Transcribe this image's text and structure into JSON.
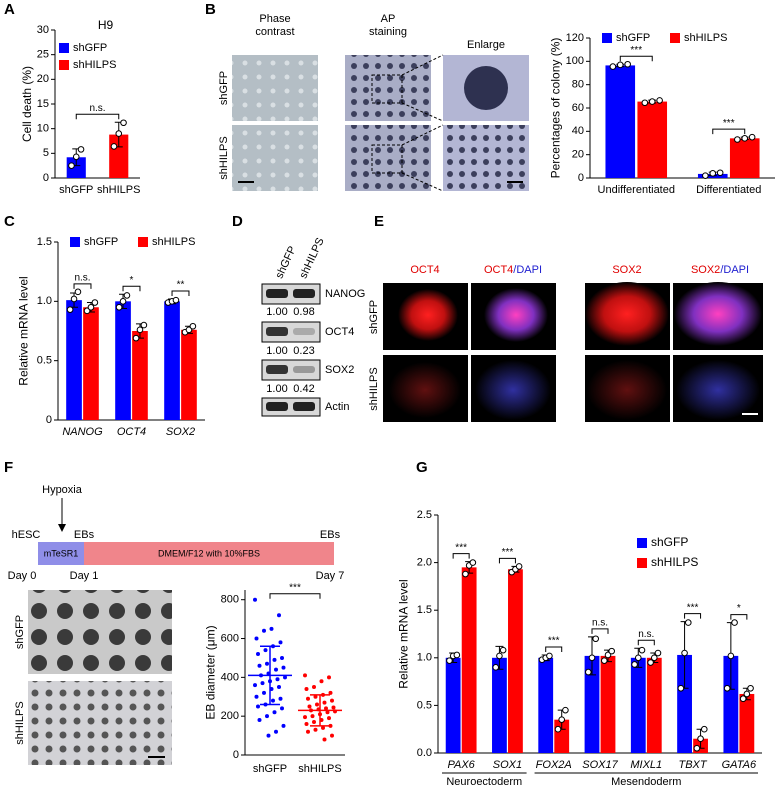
{
  "panel_labels": [
    "A",
    "B",
    "C",
    "D",
    "E",
    "F",
    "G"
  ],
  "panel_b_images": {
    "columns": [
      [
        "Phase",
        "contrast"
      ],
      [
        "AP",
        "staining"
      ],
      [
        "Enlarge"
      ]
    ],
    "rows": [
      "shGFP",
      "shHILPS"
    ]
  },
  "western": {
    "lanes": [
      "shGFP",
      "shHILPS"
    ],
    "proteins": [
      "NANOG",
      "OCT4",
      "SOX2",
      "Actin"
    ],
    "quantification": [
      [
        "1.00",
        "0.98"
      ],
      [
        "1.00",
        "0.23"
      ],
      [
        "1.00",
        "0.42"
      ]
    ]
  },
  "panel_e_images": {
    "columns": [
      {
        "stain": "OCT4"
      },
      {
        "stain": "OCT4",
        "counterstain": "/DAPI"
      },
      {
        "stain": "SOX2"
      },
      {
        "stain": "SOX2",
        "counterstain": "/DAPI"
      }
    ],
    "rows": [
      "shGFP",
      "shHILPS"
    ]
  },
  "timeline": {
    "event": "Hypoxia",
    "stages": [
      "hESC",
      "EBs",
      "EBs"
    ],
    "media": [
      "mTeSR1",
      "DMEM/F12 with 10%FBS"
    ],
    "days": [
      "Day 0",
      "Day 1",
      "Day 7"
    ]
  },
  "panel_f_images": {
    "rows": [
      "shGFP",
      "shHILPS"
    ]
  },
  "chart_data": [
    {
      "type": "bar",
      "title": "H9",
      "y_label": "Cell death (%)",
      "categories": [
        "shGFP",
        "shHILPS"
      ],
      "values": [
        4.2,
        8.8
      ],
      "errors": [
        1.7,
        2.5
      ],
      "points": [
        [
          2.5,
          4.3,
          5.8
        ],
        [
          6.4,
          9.0,
          11.2
        ]
      ],
      "colors": [
        "#0000ff",
        "#ff0000"
      ],
      "legend": "top-left",
      "ylim": [
        0,
        30
      ],
      "yticks": [
        0,
        5,
        10,
        15,
        20,
        25,
        30
      ],
      "significance": "n.s."
    },
    {
      "type": "bar",
      "y_label": "Percentages of colony (%)",
      "categories": [
        "Undifferentiated",
        "Differentiated"
      ],
      "series": [
        {
          "name": "shGFP",
          "color": "#0000ff",
          "values": [
            96.5,
            3.5
          ],
          "errors": [
            1.0,
            1.5
          ],
          "points": [
            [
              95.5,
              97,
              97.5
            ],
            [
              2,
              4,
              4.5
            ]
          ]
        },
        {
          "name": "shHILPS",
          "color": "#ff0000",
          "values": [
            65.5,
            34
          ],
          "errors": [
            1.2,
            1.0
          ],
          "points": [
            [
              64.5,
              65.5,
              66.5
            ],
            [
              33,
              34,
              35
            ]
          ]
        }
      ],
      "ylim": [
        0,
        120
      ],
      "yticks": [
        0,
        20,
        40,
        60,
        80,
        100,
        120
      ],
      "significance": [
        "***",
        "***"
      ],
      "legend": "top"
    },
    {
      "type": "bar",
      "y_label": "Relative mRNA level",
      "categories": [
        "NANOG",
        "OCT4",
        "SOX2"
      ],
      "italic_categories": true,
      "series": [
        {
          "name": "shGFP",
          "color": "#0000ff",
          "values": [
            1.01,
            1.0,
            1.0
          ],
          "errors": [
            0.06,
            0.06,
            0.02
          ],
          "points": [
            [
              0.93,
              1.02,
              1.08
            ],
            [
              0.95,
              1.0,
              1.05
            ],
            [
              0.99,
              1.0,
              1.01
            ]
          ]
        },
        {
          "name": "shHILPS",
          "color": "#ff0000",
          "values": [
            0.95,
            0.75,
            0.76
          ],
          "errors": [
            0.04,
            0.06,
            0.03
          ],
          "points": [
            [
              0.92,
              0.95,
              0.99
            ],
            [
              0.69,
              0.76,
              0.8
            ],
            [
              0.74,
              0.76,
              0.79
            ]
          ]
        }
      ],
      "ylim": [
        0,
        1.5
      ],
      "yticks": [
        0,
        0.5,
        {
          "value": 1,
          "label": "1.0"
        },
        1.5
      ],
      "significance": [
        "n.s.",
        "*",
        "**"
      ],
      "legend": "top"
    },
    {
      "type": "dot",
      "y_label": "EB diameter (μm)",
      "categories": [
        "shGFP",
        "shHILPS"
      ],
      "colors": [
        "#0000ff",
        "#ff0000"
      ],
      "values": [
        [
          800,
          720,
          650,
          640,
          600,
          580,
          560,
          540,
          520,
          500,
          490,
          470,
          460,
          450,
          440,
          420,
          410,
          400,
          390,
          380,
          370,
          360,
          350,
          340,
          320,
          300,
          290,
          280,
          260,
          250,
          240,
          220,
          200,
          180,
          150,
          120,
          100
        ],
        [
          410,
          400,
          380,
          350,
          340,
          320,
          310,
          300,
          290,
          280,
          270,
          260,
          250,
          245,
          240,
          235,
          230,
          225,
          220,
          210,
          200,
          195,
          190,
          180,
          170,
          160,
          150,
          140,
          130,
          120,
          100,
          80
        ]
      ],
      "means": [
        410,
        230
      ],
      "sds": [
        150,
        80
      ],
      "ylim": [
        0,
        850
      ],
      "yticks": [
        0,
        200,
        400,
        600,
        800
      ],
      "significance": "***"
    },
    {
      "type": "bar",
      "y_label": "Relative mRNA level",
      "categories": [
        "PAX6",
        "SOX1",
        "FOX2A",
        "SOX17",
        "MIXL1",
        "TBXT",
        "GATA6"
      ],
      "italic_categories": true,
      "series": [
        {
          "name": "shGFP",
          "color": "#0000ff",
          "values": [
            1.0,
            1.0,
            1.0,
            1.02,
            1.0,
            1.03,
            1.02
          ],
          "errors": [
            0.05,
            0.12,
            0.03,
            0.2,
            0.1,
            0.35,
            0.35
          ],
          "points": [
            [
              0.97,
              1.02,
              1.03
            ],
            [
              0.9,
              1.02,
              1.08
            ],
            [
              0.98,
              1.0,
              1.02
            ],
            [
              0.85,
              1.0,
              1.2
            ],
            [
              0.93,
              1.0,
              1.08
            ],
            [
              0.68,
              1.05,
              1.37
            ],
            [
              0.68,
              1.02,
              1.37
            ]
          ]
        },
        {
          "name": "shHILPS",
          "color": "#ff0000",
          "values": [
            1.95,
            1.93,
            0.35,
            1.02,
            1.0,
            0.15,
            0.62
          ],
          "errors": [
            0.06,
            0.03,
            0.1,
            0.06,
            0.05,
            0.1,
            0.06
          ],
          "points": [
            [
              1.88,
              1.97,
              2.0
            ],
            [
              1.9,
              1.93,
              1.96
            ],
            [
              0.25,
              0.35,
              0.45
            ],
            [
              0.97,
              1.03,
              1.07
            ],
            [
              0.95,
              1.0,
              1.05
            ],
            [
              0.05,
              0.15,
              0.25
            ],
            [
              0.57,
              0.62,
              0.68
            ]
          ]
        }
      ],
      "ylim": [
        0,
        2.5
      ],
      "yticks": [
        {
          "value": 0,
          "label": "0.0"
        },
        0.5,
        {
          "value": 1,
          "label": "1.0"
        },
        1.5,
        {
          "value": 2,
          "label": "2.0"
        },
        2.5
      ],
      "significance": [
        "***",
        "***",
        "***",
        "n.s.",
        "n.s.",
        "***",
        "*"
      ],
      "legend": "top-right",
      "groups": [
        {
          "name": "Neuroectoderm",
          "categories": [
            "PAX6",
            "SOX1"
          ]
        },
        {
          "name": "Mesendoderm",
          "categories": [
            "FOX2A",
            "SOX17",
            "MIXL1",
            "TBXT",
            "GATA6"
          ]
        }
      ]
    }
  ]
}
